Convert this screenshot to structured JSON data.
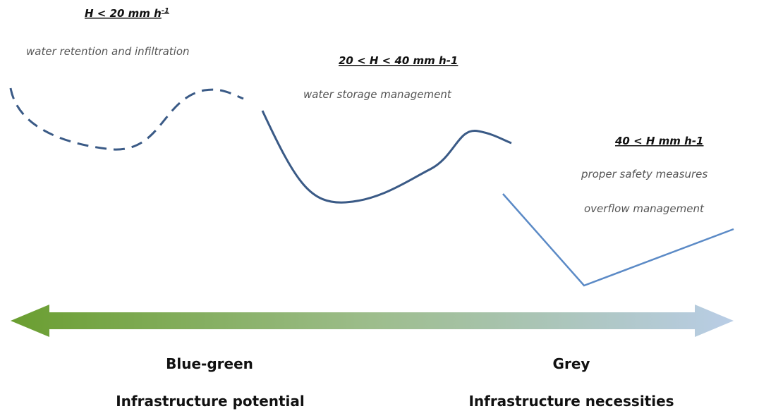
{
  "levels": [
    {
      "heading": "H < 20 mm h",
      "superscript": "-1",
      "descriptions": [
        "water retention and infiltration"
      ]
    },
    {
      "heading": "20 < H < 40 mm h-1",
      "descriptions": [
        "water storage management"
      ]
    },
    {
      "heading": "40 < H mm h-1",
      "descriptions": [
        "proper safety measures",
        "overflow management"
      ]
    }
  ],
  "scale": {
    "left": {
      "title": "Blue-green",
      "subtitle": "Infrastructure potential"
    },
    "right": {
      "title": "Grey",
      "subtitle": "Infrastructure necessities"
    }
  }
}
